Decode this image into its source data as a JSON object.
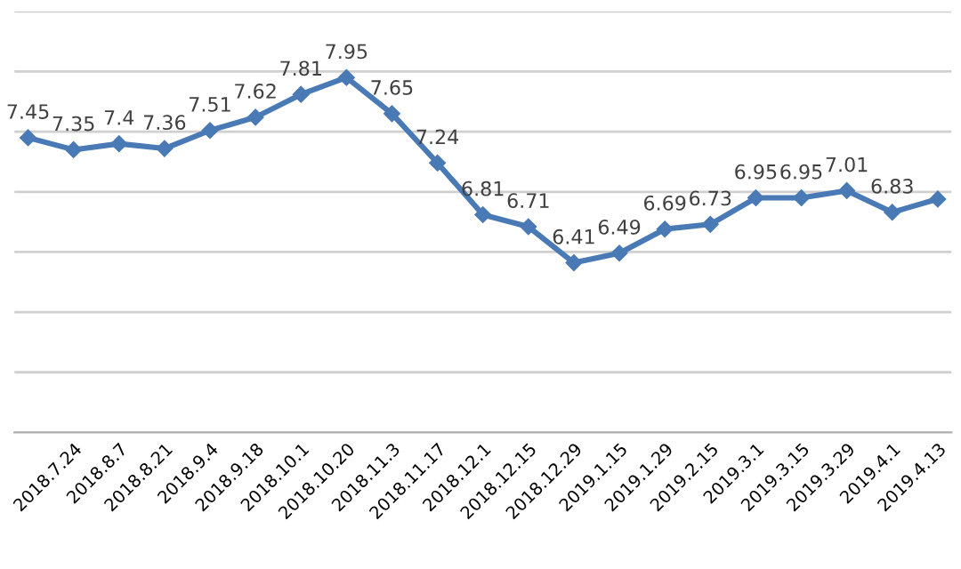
{
  "chart_data": {
    "type": "line",
    "categories": [
      null,
      "2018.7.24",
      "2018.8.7",
      "2018.8.21",
      "2018.9.4",
      "2018.9.18",
      "2018.10.1",
      "2018.10.20",
      "2018.11.3",
      "2018.11.17",
      "2018.12.1",
      "2018.12.15",
      "2018.12.29",
      "2019.1.15",
      "2019.1.29",
      "2019.2.15",
      "2019.3.1",
      "2019.3.15",
      "2019.3.29",
      "2019.4.1",
      "2019.4.13"
    ],
    "series": [
      {
        "color": "#4a7ab5",
        "values": [
          7.45,
          7.35,
          7.4,
          7.36,
          7.51,
          7.62,
          7.81,
          7.95,
          7.65,
          7.24,
          6.81,
          6.71,
          6.41,
          6.49,
          6.69,
          6.73,
          6.95,
          6.95,
          7.01,
          6.83,
          6.94
        ],
        "value_labels": [
          "7.45",
          "7.35",
          "7.4",
          "7.36",
          "7.51",
          "7.62",
          "7.81",
          "7.95",
          "7.65",
          "7.24",
          "6.81",
          "6.71",
          "6.41",
          "6.49",
          "6.69",
          "6.73",
          "6.95",
          "6.95",
          "7.01",
          "6.83",
          null
        ]
      }
    ],
    "ylim": [
      5,
      8.5
    ],
    "yticks": [
      {
        "value": 5,
        "label": null
      },
      {
        "value": 5.5,
        "label": null
      },
      {
        "value": 6,
        "label": null
      },
      {
        "value": 6.5,
        "label": null
      },
      {
        "value": 7,
        "label": null
      },
      {
        "value": 7.5,
        "label": null
      },
      {
        "value": 8,
        "label": null
      },
      {
        "value": 8.5,
        "label": null
      }
    ],
    "grid": "y",
    "marker": "diamond",
    "line_style": "solid",
    "legend": false
  }
}
